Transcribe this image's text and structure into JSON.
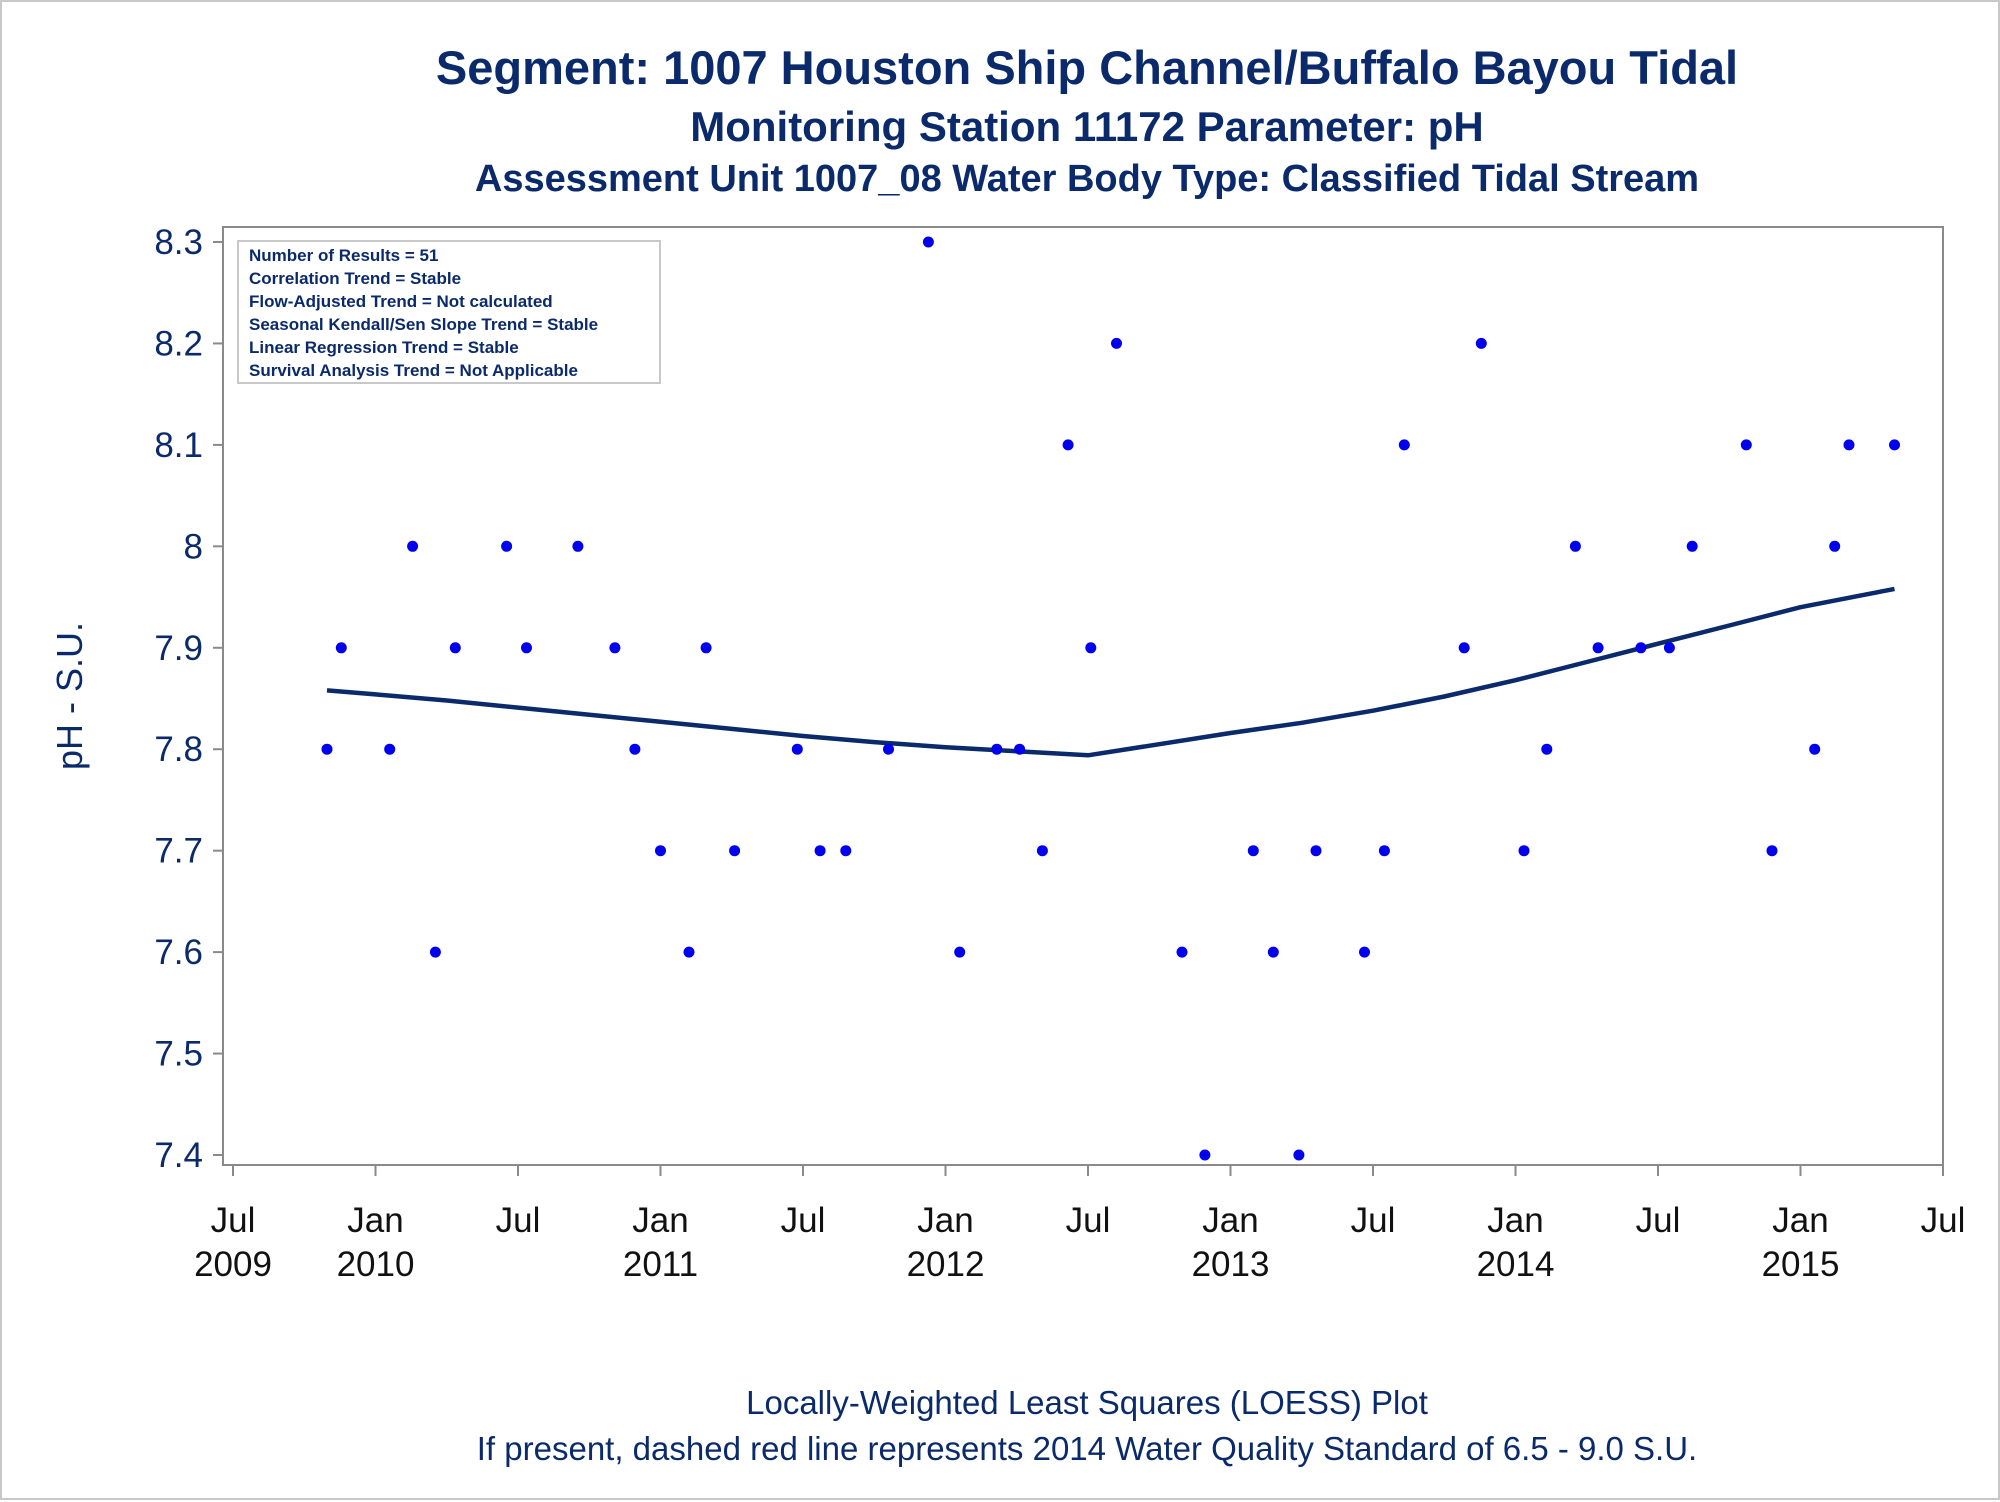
{
  "titles": {
    "line1": "Segment: 1007  Houston Ship Channel/Buffalo Bayou Tidal",
    "line2": "Monitoring Station 11172 Parameter: pH",
    "line3": "Assessment Unit 1007_08   Water Body Type: Classified Tidal Stream"
  },
  "footnotes": {
    "line1": "Locally-Weighted Least Squares (LOESS) Plot",
    "line2": "If present, dashed red line represents 2014 Water Quality Standard of 6.5 - 9.0 S.U."
  },
  "info_box": [
    "Number of Results = 51",
    "Correlation Trend = Stable",
    "Flow-Adjusted Trend = Not calculated",
    "Seasonal Kendall/Sen Slope Trend = Stable",
    "Linear Regression Trend = Stable",
    "Survival Analysis Trend = Not Applicable"
  ],
  "colors": {
    "points": "#0000ee",
    "loess": "#0b2a6b",
    "text": "#0b2a6b",
    "axis": "#8a8a8a"
  },
  "chart_data": {
    "type": "scatter",
    "ylabel": "pH - S.U.",
    "ylim": [
      7.4,
      8.3
    ],
    "yticks": [
      "7.4",
      "7.5",
      "7.6",
      "7.7",
      "7.8",
      "7.9",
      "8",
      "8.1",
      "8.2",
      "8.3"
    ],
    "xlim": [
      2009.5,
      2015.5
    ],
    "xticks": [
      {
        "x": 2009.5,
        "label1": "Jul",
        "label2": "2009"
      },
      {
        "x": 2010.0,
        "label1": "Jan",
        "label2": "2010"
      },
      {
        "x": 2010.5,
        "label1": "Jul",
        "label2": ""
      },
      {
        "x": 2011.0,
        "label1": "Jan",
        "label2": "2011"
      },
      {
        "x": 2011.5,
        "label1": "Jul",
        "label2": ""
      },
      {
        "x": 2012.0,
        "label1": "Jan",
        "label2": "2012"
      },
      {
        "x": 2012.5,
        "label1": "Jul",
        "label2": ""
      },
      {
        "x": 2013.0,
        "label1": "Jan",
        "label2": "2013"
      },
      {
        "x": 2013.5,
        "label1": "Jul",
        "label2": ""
      },
      {
        "x": 2014.0,
        "label1": "Jan",
        "label2": "2014"
      },
      {
        "x": 2014.5,
        "label1": "Jul",
        "label2": ""
      },
      {
        "x": 2015.0,
        "label1": "Jan",
        "label2": "2015"
      },
      {
        "x": 2015.5,
        "label1": "Jul",
        "label2": ""
      }
    ],
    "points": [
      [
        2009.83,
        7.8
      ],
      [
        2009.88,
        7.9
      ],
      [
        2010.05,
        7.8
      ],
      [
        2010.13,
        8.0
      ],
      [
        2010.21,
        7.6
      ],
      [
        2010.28,
        7.9
      ],
      [
        2010.46,
        8.0
      ],
      [
        2010.53,
        7.9
      ],
      [
        2010.71,
        8.0
      ],
      [
        2010.84,
        7.9
      ],
      [
        2010.91,
        7.8
      ],
      [
        2011.0,
        7.7
      ],
      [
        2011.1,
        7.6
      ],
      [
        2011.16,
        7.9
      ],
      [
        2011.26,
        7.7
      ],
      [
        2011.48,
        7.8
      ],
      [
        2011.56,
        7.7
      ],
      [
        2011.65,
        7.7
      ],
      [
        2011.8,
        7.8
      ],
      [
        2011.94,
        8.3
      ],
      [
        2012.05,
        7.6
      ],
      [
        2012.18,
        7.8
      ],
      [
        2012.26,
        7.8
      ],
      [
        2012.34,
        7.7
      ],
      [
        2012.43,
        8.1
      ],
      [
        2012.51,
        7.9
      ],
      [
        2012.6,
        8.2
      ],
      [
        2012.83,
        7.6
      ],
      [
        2012.91,
        7.4
      ],
      [
        2013.08,
        7.7
      ],
      [
        2013.15,
        7.6
      ],
      [
        2013.24,
        7.4
      ],
      [
        2013.3,
        7.7
      ],
      [
        2013.47,
        7.6
      ],
      [
        2013.54,
        7.7
      ],
      [
        2013.61,
        8.1
      ],
      [
        2013.82,
        7.9
      ],
      [
        2013.88,
        8.2
      ],
      [
        2014.03,
        7.7
      ],
      [
        2014.11,
        7.8
      ],
      [
        2014.21,
        8.0
      ],
      [
        2014.29,
        7.9
      ],
      [
        2014.44,
        7.9
      ],
      [
        2014.54,
        7.9
      ],
      [
        2014.62,
        8.0
      ],
      [
        2014.81,
        8.1
      ],
      [
        2014.9,
        7.7
      ],
      [
        2015.05,
        7.8
      ],
      [
        2015.12,
        8.0
      ],
      [
        2015.17,
        8.1
      ],
      [
        2015.33,
        8.1
      ]
    ],
    "loess": [
      [
        2009.83,
        7.858
      ],
      [
        2010.0,
        7.854
      ],
      [
        2010.25,
        7.848
      ],
      [
        2010.5,
        7.841
      ],
      [
        2010.75,
        7.834
      ],
      [
        2011.0,
        7.827
      ],
      [
        2011.25,
        7.82
      ],
      [
        2011.5,
        7.813
      ],
      [
        2011.75,
        7.807
      ],
      [
        2012.0,
        7.802
      ],
      [
        2012.25,
        7.798
      ],
      [
        2012.5,
        7.794
      ],
      [
        2012.75,
        7.805
      ],
      [
        2013.0,
        7.816
      ],
      [
        2013.25,
        7.826
      ],
      [
        2013.5,
        7.838
      ],
      [
        2013.75,
        7.852
      ],
      [
        2014.0,
        7.868
      ],
      [
        2014.25,
        7.886
      ],
      [
        2014.5,
        7.904
      ],
      [
        2014.75,
        7.922
      ],
      [
        2015.0,
        7.94
      ],
      [
        2015.33,
        7.958
      ]
    ]
  }
}
